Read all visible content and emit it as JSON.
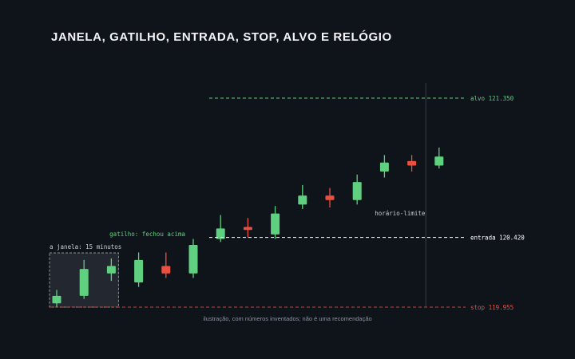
{
  "title": "JANELA, GATILHO, ENTRADA, STOP, ALVO E RELÓGIO",
  "footnote": "ilustração, com números inventados; não é uma recomendação",
  "colors": {
    "background": "#0f141b",
    "bull": "#5fd07f",
    "bear": "#e8503f",
    "target": "#5fd07f",
    "entry": "#ffffff",
    "stop": "#e8503f",
    "window_fill": "#232830",
    "window_border": "#8a8f96",
    "time_line": "#3a4048",
    "label_muted": "#c9ccd1"
  },
  "chart_data": {
    "type": "candlestick",
    "y_range": [
      119.955,
      121.35
    ],
    "candles": [
      {
        "open": 119.98,
        "close": 120.03,
        "high": 120.07,
        "low": 119.955
      },
      {
        "open": 120.03,
        "close": 120.21,
        "high": 120.27,
        "low": 120.01
      },
      {
        "open": 120.18,
        "close": 120.23,
        "high": 120.28,
        "low": 120.13
      },
      {
        "open": 120.12,
        "close": 120.27,
        "high": 120.32,
        "low": 120.09
      },
      {
        "open": 120.23,
        "close": 120.18,
        "high": 120.32,
        "low": 120.15
      },
      {
        "open": 120.18,
        "close": 120.37,
        "high": 120.41,
        "low": 120.15
      },
      {
        "open": 120.41,
        "close": 120.48,
        "high": 120.57,
        "low": 120.39
      },
      {
        "open": 120.49,
        "close": 120.47,
        "high": 120.55,
        "low": 120.42
      },
      {
        "open": 120.44,
        "close": 120.58,
        "high": 120.63,
        "low": 120.41
      },
      {
        "open": 120.64,
        "close": 120.7,
        "high": 120.77,
        "low": 120.61
      },
      {
        "open": 120.7,
        "close": 120.67,
        "high": 120.75,
        "low": 120.62
      },
      {
        "open": 120.67,
        "close": 120.79,
        "high": 120.84,
        "low": 120.64
      },
      {
        "open": 120.86,
        "close": 120.92,
        "high": 120.97,
        "low": 120.82
      },
      {
        "open": 120.93,
        "close": 120.9,
        "high": 120.97,
        "low": 120.86
      },
      {
        "open": 120.9,
        "close": 120.96,
        "high": 121.02,
        "low": 120.88
      }
    ],
    "window": {
      "label": "a janela: 15 minutos",
      "first_candle": 1,
      "last_candle": 3
    },
    "trigger": {
      "label": "gatilho: fechou acima",
      "candle": 6
    },
    "levels": {
      "target": {
        "label": "alvo 121.350",
        "value": 121.35
      },
      "entry": {
        "label": "entrada 120.420",
        "value": 120.42
      },
      "stop": {
        "label": "stop 119.955",
        "value": 119.955
      }
    },
    "time_limit": {
      "label": "horário-limite",
      "after_candle": 14
    }
  }
}
